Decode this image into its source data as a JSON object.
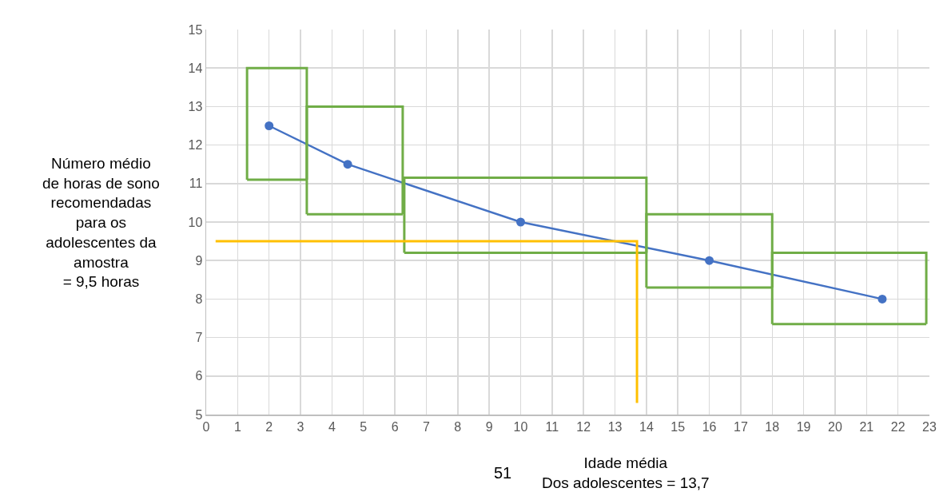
{
  "chart_data": {
    "type": "line",
    "xlabel": "Idade média\nDos adolescentes = 13,7",
    "ylabel": "Número médio\nde horas de sono\nrecomendadas\npara os\nadolescentes da\namostra\n= 9,5 horas",
    "annotations": [
      "51"
    ],
    "series": [
      {
        "x": [
          2,
          4.5,
          10,
          16,
          21.5
        ],
        "values": [
          12.5,
          11.5,
          10,
          9,
          8
        ],
        "color": "#4472c4",
        "marker": "circle"
      },
      {
        "x": [
          1.3,
          1.3,
          3.2,
          3.2
        ],
        "values": [
          11.1,
          14,
          14,
          11.1
        ],
        "color": "#70ad47",
        "marker": "none"
      },
      {
        "x": [
          1.3,
          3.2
        ],
        "values": [
          11.1,
          11.1
        ],
        "color": "#70ad47",
        "marker": "none"
      },
      {
        "x": [
          3.2,
          3.2,
          6.25,
          6.25
        ],
        "values": [
          10.2,
          13,
          13,
          10.2
        ],
        "color": "#70ad47",
        "marker": "none"
      },
      {
        "x": [
          3.2,
          6.25
        ],
        "values": [
          10.2,
          10.2
        ],
        "color": "#70ad47",
        "marker": "none"
      },
      {
        "x": [
          6.3,
          6.3,
          14,
          14
        ],
        "values": [
          9.2,
          11.15,
          11.15,
          9.2
        ],
        "color": "#70ad47",
        "marker": "none"
      },
      {
        "x": [
          6.3,
          14
        ],
        "values": [
          9.2,
          9.2
        ],
        "color": "#70ad47",
        "marker": "none"
      },
      {
        "x": [
          14,
          14,
          18,
          18
        ],
        "values": [
          8.3,
          10.2,
          10.2,
          8.3
        ],
        "color": "#70ad47",
        "marker": "none"
      },
      {
        "x": [
          14,
          18
        ],
        "values": [
          8.3,
          8.3
        ],
        "color": "#70ad47",
        "marker": "none"
      },
      {
        "x": [
          18,
          18,
          22.9,
          22.9
        ],
        "values": [
          7.35,
          9.2,
          9.2,
          7.35
        ],
        "color": "#70ad47",
        "marker": "none"
      },
      {
        "x": [
          18,
          22.9
        ],
        "values": [
          7.35,
          7.35
        ],
        "color": "#70ad47",
        "marker": "none"
      },
      {
        "x": [
          0.3,
          13.7,
          13.7
        ],
        "values": [
          9.5,
          9.5,
          5.3
        ],
        "color": "#ffc000",
        "marker": "none"
      }
    ],
    "xlim": [
      0,
      23
    ],
    "xticks": [
      0,
      1,
      2,
      3,
      4,
      5,
      6,
      7,
      8,
      9,
      10,
      11,
      12,
      13,
      14,
      15,
      16,
      17,
      18,
      19,
      20,
      21,
      22,
      23
    ],
    "ylim": [
      5,
      15
    ],
    "yticks": [
      5,
      6,
      7,
      8,
      9,
      10,
      11,
      12,
      13,
      14,
      15
    ],
    "grid": true,
    "line_style": "solid"
  }
}
